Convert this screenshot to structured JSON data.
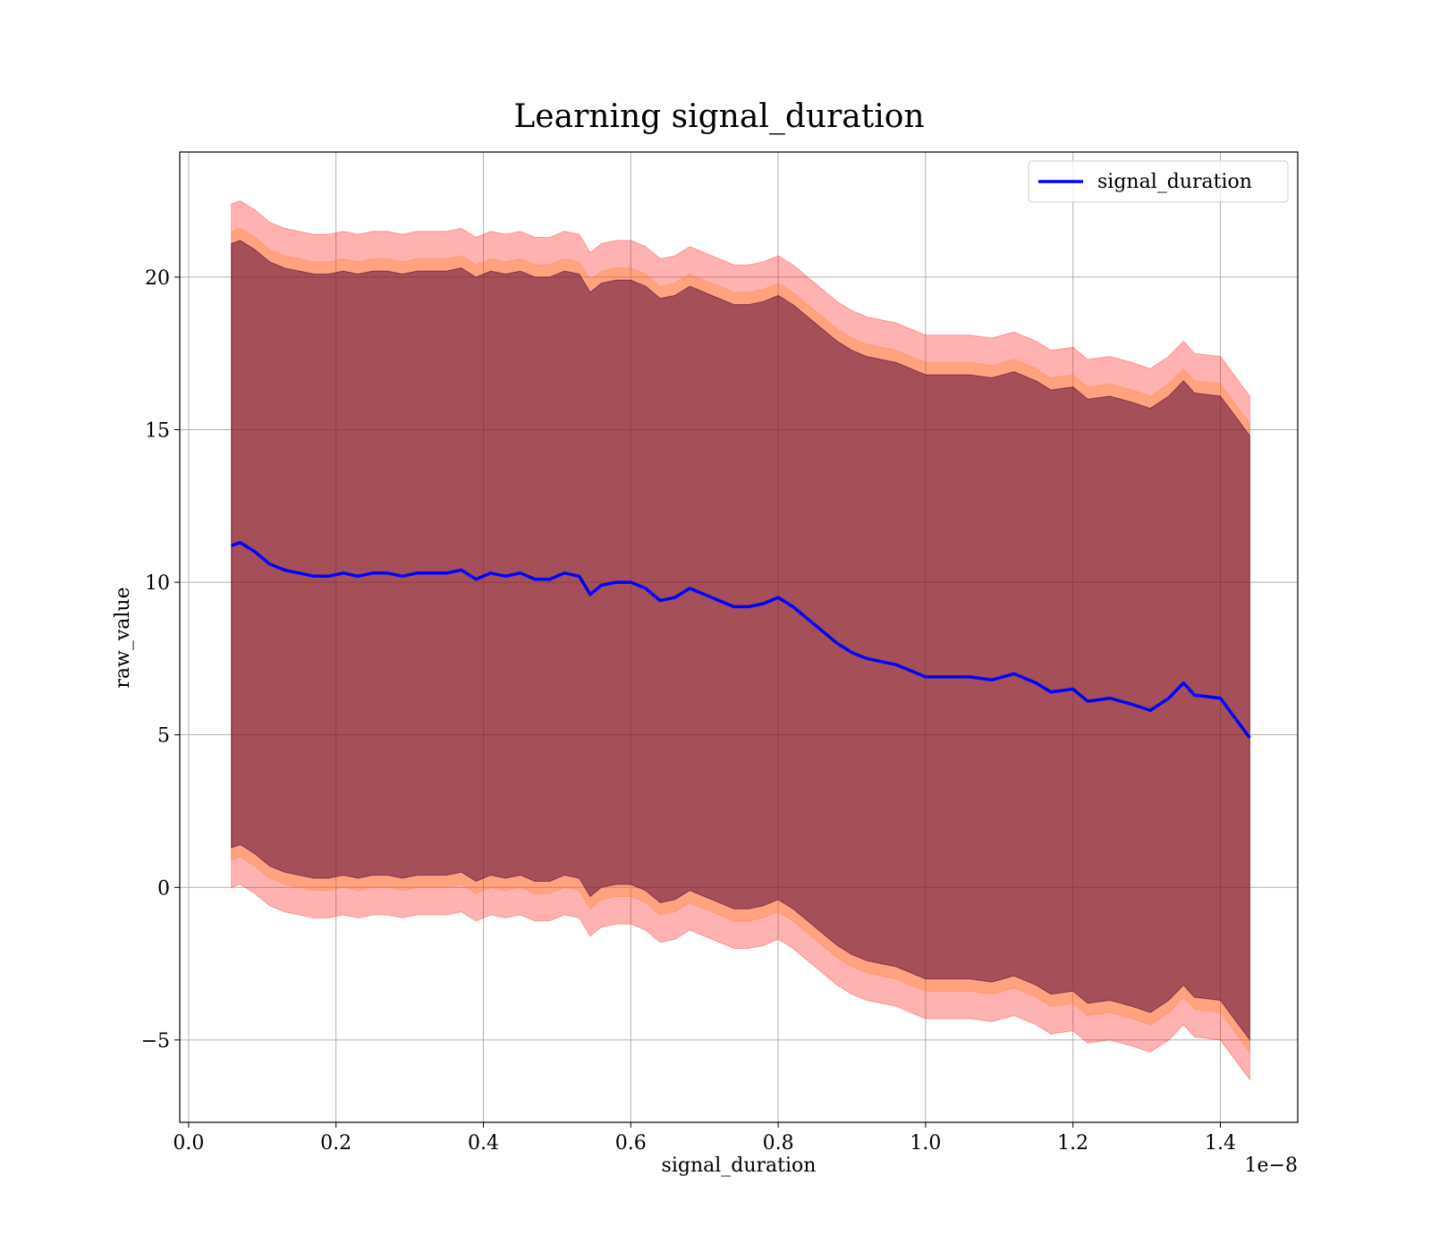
{
  "chart_data": {
    "type": "line",
    "title": "Learning signal_duration",
    "xlabel": "signal_duration",
    "ylabel": "raw_value",
    "x_offset_label": "1e−8",
    "xlim": [
      -0.012,
      1.505
    ],
    "ylim": [
      -7.7,
      24.1
    ],
    "x_ticks": [
      0.0,
      0.2,
      0.4,
      0.6,
      0.8,
      1.0,
      1.2,
      1.4
    ],
    "x_tick_labels": [
      "0.0",
      "0.2",
      "0.4",
      "0.6",
      "0.8",
      "1.0",
      "1.2",
      "1.4"
    ],
    "y_ticks": [
      -5,
      0,
      5,
      10,
      15,
      20
    ],
    "y_tick_labels": [
      "−5",
      "0",
      "5",
      "10",
      "15",
      "20"
    ],
    "grid": true,
    "legend_position": "top-right",
    "x": [
      0.058,
      0.07,
      0.09,
      0.11,
      0.13,
      0.15,
      0.17,
      0.19,
      0.21,
      0.23,
      0.25,
      0.27,
      0.29,
      0.31,
      0.33,
      0.35,
      0.37,
      0.39,
      0.41,
      0.43,
      0.45,
      0.47,
      0.49,
      0.51,
      0.53,
      0.545,
      0.56,
      0.58,
      0.6,
      0.62,
      0.64,
      0.66,
      0.68,
      0.7,
      0.72,
      0.74,
      0.76,
      0.78,
      0.8,
      0.82,
      0.84,
      0.86,
      0.88,
      0.9,
      0.92,
      0.94,
      0.96,
      0.98,
      1.0,
      1.03,
      1.06,
      1.09,
      1.12,
      1.15,
      1.17,
      1.2,
      1.22,
      1.25,
      1.28,
      1.305,
      1.33,
      1.35,
      1.365,
      1.4,
      1.44
    ],
    "series": [
      {
        "name": "signal_duration",
        "color": "#0000ff",
        "values": [
          11.2,
          11.3,
          11.0,
          10.6,
          10.4,
          10.3,
          10.2,
          10.2,
          10.3,
          10.2,
          10.3,
          10.3,
          10.2,
          10.3,
          10.3,
          10.3,
          10.4,
          10.1,
          10.3,
          10.2,
          10.3,
          10.1,
          10.1,
          10.3,
          10.2,
          9.6,
          9.9,
          10.0,
          10.0,
          9.8,
          9.4,
          9.5,
          9.8,
          9.6,
          9.4,
          9.2,
          9.2,
          9.3,
          9.5,
          9.2,
          8.8,
          8.4,
          8.0,
          7.7,
          7.5,
          7.4,
          7.3,
          7.1,
          6.9,
          6.9,
          6.9,
          6.8,
          7.0,
          6.7,
          6.4,
          6.5,
          6.1,
          6.2,
          6.0,
          5.8,
          6.2,
          6.7,
          6.3,
          6.2,
          4.9
        ]
      }
    ],
    "bands": [
      {
        "color": "#ff0000",
        "opacity": 0.3,
        "offset": 11.2
      },
      {
        "color": "#ff7f0e",
        "opacity": 0.3,
        "offset": 10.3
      },
      {
        "color": "#800080",
        "opacity": 0.3,
        "offset": 9.9
      },
      {
        "color": "#2f0000",
        "opacity": 0.3,
        "offset": 9.9
      }
    ]
  }
}
